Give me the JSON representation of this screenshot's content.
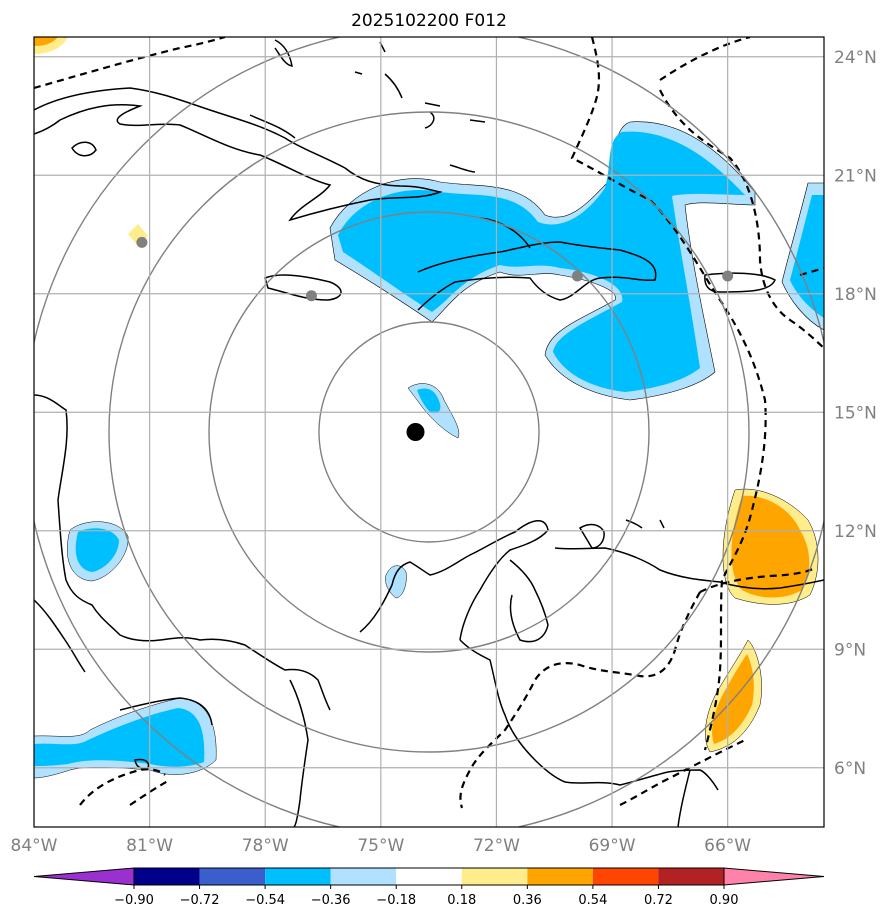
{
  "title": "2025102200 F012",
  "map": {
    "lon_range": [
      -84,
      -63.5
    ],
    "lat_range": [
      4.5,
      24.5
    ],
    "lon_ticks": [
      "84°W",
      "81°W",
      "78°W",
      "75°W",
      "72°W",
      "69°W",
      "66°W"
    ],
    "lat_ticks": [
      "24°N",
      "21°N",
      "18°N",
      "15°N",
      "12°N",
      "9°N",
      "6°N"
    ],
    "grid": true,
    "center_marker": {
      "name": "storm-center",
      "lon": -74.1,
      "lat": 14.5
    },
    "range_rings": 4,
    "city_markers": [
      {
        "lon": -81.2,
        "lat": 19.3
      },
      {
        "lon": -76.8,
        "lat": 17.95
      },
      {
        "lon": -69.9,
        "lat": 18.45
      },
      {
        "lon": -66.0,
        "lat": 18.45
      }
    ]
  },
  "colorbar": {
    "labels": [
      "−0.90",
      "−0.72",
      "−0.54",
      "−0.36",
      "−0.18",
      "0.18",
      "0.36",
      "0.54",
      "0.72",
      "0.90"
    ],
    "colors": [
      "#9b30d0",
      "#00008b",
      "#3a5fcd",
      "#00bfff",
      "#b0e2ff",
      "#ffffff",
      "#ffec8b",
      "#ffa500",
      "#ff4500",
      "#b22222",
      "#ff82ab"
    ],
    "extend": "both"
  },
  "colors": {
    "light_blue": "#b0e2ff",
    "blue": "#00bfff",
    "light_yellow": "#ffec8b",
    "orange": "#ffa500",
    "ring": "#808080",
    "grid": "#b0b0b0"
  }
}
